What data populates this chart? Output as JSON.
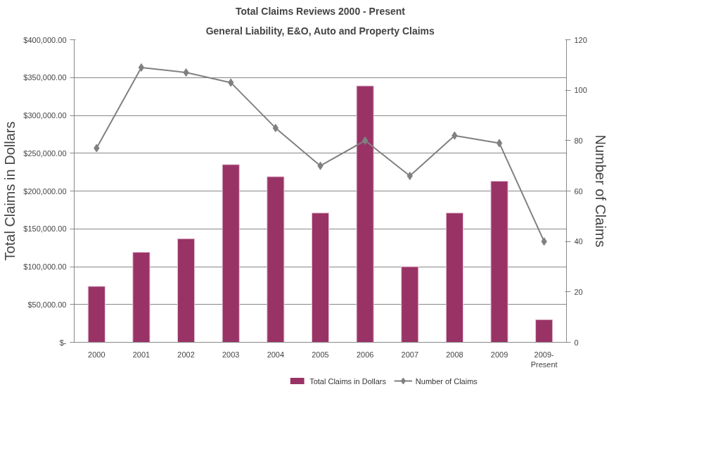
{
  "chart_data": {
    "type": "bar",
    "title": "Total Claims Reviews 2000 - Present",
    "subtitle": "General Liability, E&O, Auto and Property Claims",
    "ylabel": "Total Claims in Dollars",
    "y2label": "Number of Claims",
    "categories": [
      "2000",
      "2001",
      "2002",
      "2003",
      "2004",
      "2005",
      "2006",
      "2007",
      "2008",
      "2009",
      "2009-\nPresent"
    ],
    "series": [
      {
        "name": "Total Claims in Dollars",
        "color": "#993366",
        "values": [
          74000,
          119000,
          137000,
          235000,
          219000,
          171000,
          339000,
          100000,
          171000,
          213000,
          30000
        ]
      },
      {
        "name": "Number of Claims",
        "type": "line",
        "axis": "y2",
        "color": "#808080",
        "marker": "diamond",
        "values": [
          77,
          109,
          107,
          103,
          85,
          70,
          80,
          66,
          82,
          79,
          40
        ]
      }
    ],
    "ylim": [
      0,
      400000
    ],
    "yticks": [
      {
        "value": 0,
        "label": "$-"
      },
      {
        "value": 50000,
        "label": "$50,000.00"
      },
      {
        "value": 100000,
        "label": "$100,000.00"
      },
      {
        "value": 150000,
        "label": "$150,000.00"
      },
      {
        "value": 200000,
        "label": "$200,000.00"
      },
      {
        "value": 250000,
        "label": "$250,000.00"
      },
      {
        "value": 300000,
        "label": "$300,000.00"
      },
      {
        "value": 350000,
        "label": "$350,000.00"
      },
      {
        "value": 400000,
        "label": "$400,000.00"
      }
    ],
    "y2lim": [
      0,
      120
    ],
    "y2ticks": [
      0,
      20,
      40,
      60,
      80,
      100,
      120
    ],
    "grid": "y",
    "legend": "bottom"
  }
}
